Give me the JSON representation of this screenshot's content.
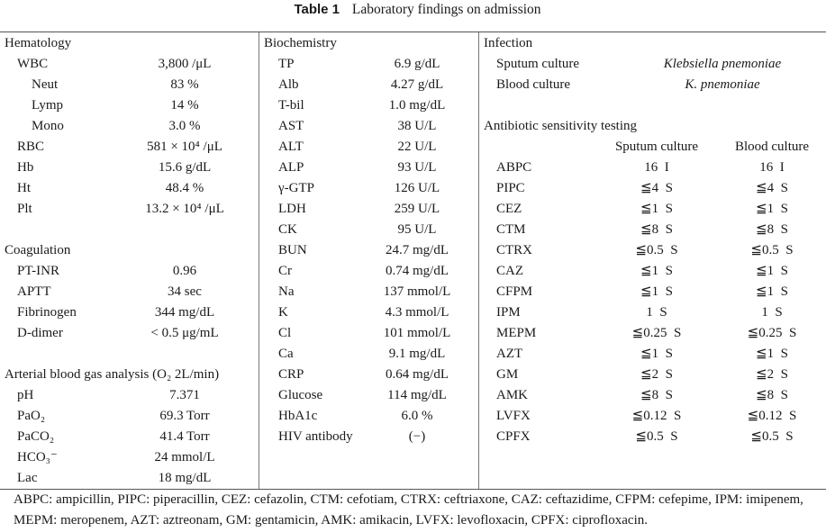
{
  "caption": {
    "label": "Table 1",
    "title": "Laboratory findings on admission"
  },
  "hematology": {
    "header": "Hematology",
    "rows": [
      {
        "name": "WBC",
        "value": "3,800 /μL"
      },
      {
        "name": "Neut",
        "value": "83 %"
      },
      {
        "name": "Lymp",
        "value": "14 %"
      },
      {
        "name": "Mono",
        "value": "3.0 %"
      },
      {
        "name": "RBC",
        "value": "581 × 10⁴ /μL"
      },
      {
        "name": "Hb",
        "value": "15.6 g/dL"
      },
      {
        "name": "Ht",
        "value": "48.4 %"
      },
      {
        "name": "Plt",
        "value": "13.2 × 10⁴ /μL"
      }
    ]
  },
  "coagulation": {
    "header": "Coagulation",
    "rows": [
      {
        "name": "PT-INR",
        "value": "0.96"
      },
      {
        "name": "APTT",
        "value": "34 sec"
      },
      {
        "name": "Fibrinogen",
        "value": "344 mg/dL"
      },
      {
        "name": "D-dimer",
        "value": "< 0.5 μg/mL"
      }
    ]
  },
  "abg": {
    "header": "Arterial blood gas analysis (O₂ 2L/min)",
    "rows": [
      {
        "name": "pH",
        "value": "7.371"
      },
      {
        "name": "PaO₂",
        "value": "69.3 Torr"
      },
      {
        "name": "PaCO₂",
        "value": "41.4 Torr"
      },
      {
        "name": "HCO₃⁻",
        "value": "24 mmol/L"
      },
      {
        "name": "Lac",
        "value": "18 mg/dL"
      }
    ]
  },
  "biochemistry": {
    "header": "Biochemistry",
    "rows": [
      {
        "name": "TP",
        "value": "6.9 g/dL"
      },
      {
        "name": "Alb",
        "value": "4.27 g/dL"
      },
      {
        "name": "T-bil",
        "value": "1.0 mg/dL"
      },
      {
        "name": "AST",
        "value": "38 U/L"
      },
      {
        "name": "ALT",
        "value": "22 U/L"
      },
      {
        "name": "ALP",
        "value": "93 U/L"
      },
      {
        "name": "γ-GTP",
        "value": "126 U/L"
      },
      {
        "name": "LDH",
        "value": "259 U/L"
      },
      {
        "name": "CK",
        "value": "95 U/L"
      },
      {
        "name": "BUN",
        "value": "24.7 mg/dL"
      },
      {
        "name": "Cr",
        "value": "0.74 mg/dL"
      },
      {
        "name": "Na",
        "value": "137 mmol/L"
      },
      {
        "name": "K",
        "value": "4.3 mmol/L"
      },
      {
        "name": "Cl",
        "value": "101 mmol/L"
      },
      {
        "name": "Ca",
        "value": "9.1 mg/dL"
      },
      {
        "name": "CRP",
        "value": "0.64 mg/dL"
      },
      {
        "name": "Glucose",
        "value": "114 mg/dL"
      },
      {
        "name": "HbA1c",
        "value": "6.0 %"
      },
      {
        "name": "HIV antibody",
        "value": "(−)"
      }
    ]
  },
  "infection": {
    "header": "Infection",
    "rows": [
      {
        "name": "Sputum culture",
        "value": "Klebsiella pnemoniae"
      },
      {
        "name": "Blood culture",
        "value": "K. pnemoniae"
      }
    ]
  },
  "sensitivity": {
    "header": "Antibiotic sensitivity testing",
    "col_sputum": "Sputum culture",
    "col_blood": "Blood culture",
    "rows": [
      {
        "drug": "ABPC",
        "sputum": "16  I",
        "blood": "16  I"
      },
      {
        "drug": "PIPC",
        "sputum": "≦4  S",
        "blood": "≦4  S"
      },
      {
        "drug": "CEZ",
        "sputum": "≦1  S",
        "blood": "≦1  S"
      },
      {
        "drug": "CTM",
        "sputum": "≦8  S",
        "blood": "≦8  S"
      },
      {
        "drug": "CTRX",
        "sputum": "≦0.5  S",
        "blood": "≦0.5  S"
      },
      {
        "drug": "CAZ",
        "sputum": "≦1  S",
        "blood": "≦1  S"
      },
      {
        "drug": "CFPM",
        "sputum": "≦1  S",
        "blood": "≦1  S"
      },
      {
        "drug": "IPM",
        "sputum": "1  S",
        "blood": "1  S"
      },
      {
        "drug": "MEPM",
        "sputum": "≦0.25  S",
        "blood": "≦0.25  S"
      },
      {
        "drug": "AZT",
        "sputum": "≦1  S",
        "blood": "≦1  S"
      },
      {
        "drug": "GM",
        "sputum": "≦2  S",
        "blood": "≦2  S"
      },
      {
        "drug": "AMK",
        "sputum": "≦8  S",
        "blood": "≦8  S"
      },
      {
        "drug": "LVFX",
        "sputum": "≦0.12  S",
        "blood": "≦0.12  S"
      },
      {
        "drug": "CPFX",
        "sputum": "≦0.5  S",
        "blood": "≦0.5  S"
      }
    ]
  },
  "footnote": "ABPC: ampicillin, PIPC: piperacillin, CEZ: cefazolin, CTM: cefotiam, CTRX: ceftriaxone, CAZ: ceftazidime, CFPM: cefepime, IPM: imipenem, MEPM: meropenem, AZT: aztreonam, GM: gentamicin, AMK: amikacin, LVFX: levofloxacin, CPFX: ciprofloxacin."
}
